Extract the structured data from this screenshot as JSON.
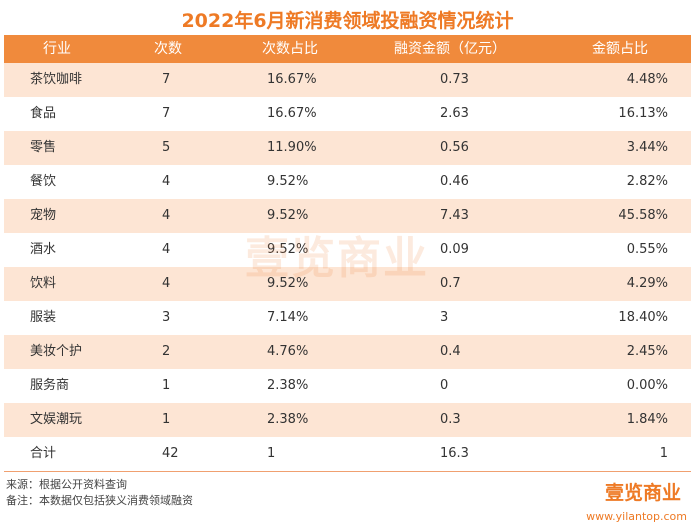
{
  "header": {
    "title": "2022年6月新消费领域投融资情况统计"
  },
  "table": {
    "columns": [
      "行业",
      "次数",
      "次数占比",
      "融资金额（亿元）",
      "金额占比"
    ],
    "rows": [
      [
        "茶饮咖啡",
        "7",
        "16.67%",
        "0.73",
        "4.48%"
      ],
      [
        "食品",
        "7",
        "16.67%",
        "2.63",
        "16.13%"
      ],
      [
        "零售",
        "5",
        "11.90%",
        "0.56",
        "3.44%"
      ],
      [
        "餐饮",
        "4",
        "9.52%",
        "0.46",
        "2.82%"
      ],
      [
        "宠物",
        "4",
        "9.52%",
        "7.43",
        "45.58%"
      ],
      [
        "酒水",
        "4",
        "9.52%",
        "0.09",
        "0.55%"
      ],
      [
        "饮料",
        "4",
        "9.52%",
        "0.7",
        "4.29%"
      ],
      [
        "服装",
        "3",
        "7.14%",
        "3",
        "18.40%"
      ],
      [
        "美妆个护",
        "2",
        "4.76%",
        "0.4",
        "2.45%"
      ],
      [
        "服务商",
        "1",
        "2.38%",
        "0",
        "0.00%"
      ],
      [
        "文娱潮玩",
        "1",
        "2.38%",
        "0.3",
        "1.84%"
      ],
      [
        "合计",
        "42",
        "1",
        "16.3",
        "1"
      ]
    ]
  },
  "watermark": "壹览商业",
  "footer": {
    "notes": [
      "来源：根据公开资料查询",
      "备注：本数据仅包括狭义消费领域融资"
    ],
    "logo": "壹览商业",
    "url": "www.yilantop.com"
  }
}
